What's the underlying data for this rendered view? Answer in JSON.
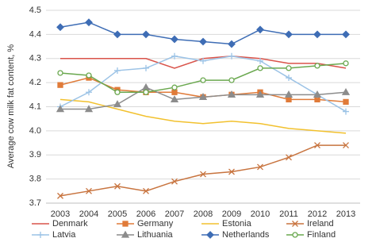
{
  "chart_data": {
    "type": "line",
    "y_label": "Average cow milk fat content, %",
    "categories": [
      "2003",
      "2004",
      "2005",
      "2006",
      "2007",
      "2008",
      "2009",
      "2010",
      "2011",
      "2012",
      "2013"
    ],
    "ylim": [
      3.7,
      4.5
    ],
    "yticks": [
      3.7,
      3.8,
      3.9,
      {
        "value": 4,
        "label": "4.0"
      },
      4.1,
      4.2,
      4.3,
      4.4,
      4.5
    ],
    "grid": true,
    "legend": "bottom",
    "series": [
      {
        "name": "Denmark",
        "color": "#d9534a",
        "marker": "none",
        "values": [
          4.3,
          4.3,
          4.3,
          4.3,
          4.26,
          4.3,
          4.31,
          4.3,
          4.28,
          4.28,
          4.26
        ]
      },
      {
        "name": "Germany",
        "color": "#e07b39",
        "marker": "square",
        "values": [
          4.19,
          4.22,
          4.17,
          4.16,
          4.16,
          4.14,
          4.15,
          4.16,
          4.13,
          4.13,
          4.12
        ]
      },
      {
        "name": "Estonia",
        "color": "#f2c12e",
        "marker": "none",
        "values": [
          4.13,
          4.12,
          4.09,
          4.06,
          4.04,
          4.03,
          4.04,
          4.03,
          4.01,
          4.0,
          3.99
        ]
      },
      {
        "name": "Ireland",
        "color": "#c8743f",
        "marker": "x",
        "values": [
          3.73,
          3.75,
          3.77,
          3.75,
          3.79,
          3.82,
          3.83,
          3.85,
          3.89,
          3.94,
          3.94
        ]
      },
      {
        "name": "Latvia",
        "color": "#9cc3e6",
        "marker": "plus",
        "values": [
          4.1,
          4.16,
          4.25,
          4.26,
          4.31,
          4.29,
          4.31,
          4.29,
          4.22,
          4.15,
          4.08
        ]
      },
      {
        "name": "Lithuania",
        "color": "#8c8c8c",
        "marker": "triangle",
        "values": [
          4.09,
          4.09,
          4.11,
          4.18,
          4.13,
          4.14,
          4.15,
          4.15,
          4.15,
          4.15,
          4.16
        ]
      },
      {
        "name": "Netherlands",
        "color": "#3e6db5",
        "marker": "diamond",
        "values": [
          4.43,
          4.45,
          4.4,
          4.4,
          4.38,
          4.37,
          4.36,
          4.42,
          4.4,
          4.4,
          4.4
        ]
      },
      {
        "name": "Finland",
        "color": "#6aa84f",
        "marker": "circle",
        "values": [
          4.24,
          4.23,
          4.16,
          4.16,
          4.18,
          4.21,
          4.21,
          4.26,
          4.26,
          4.27,
          4.28
        ]
      }
    ]
  }
}
